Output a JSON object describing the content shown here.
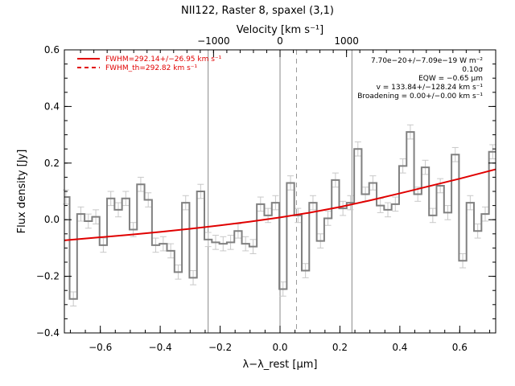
{
  "chart_data": {
    "type": "line",
    "title": "NII122, Raster 8, spaxel (3,1)",
    "xlabel": "λ−λ_rest [μm]",
    "ylabel": "Flux density [Jy]",
    "top_xlabel": "Velocity [km s⁻¹]",
    "xlim": [
      -0.72,
      0.72
    ],
    "ylim": [
      -0.4,
      0.6
    ],
    "xticks": [
      -0.6,
      -0.4,
      -0.2,
      0.0,
      0.2,
      0.4,
      0.6
    ],
    "xtick_labels": [
      "−0.6",
      "−0.4",
      "−0.2",
      "0.0",
      "0.2",
      "0.4",
      "0.6"
    ],
    "yticks": [
      -0.4,
      -0.2,
      0.0,
      0.2,
      0.4,
      0.6
    ],
    "ytick_labels": [
      "−0.4",
      "−0.2",
      "0.0",
      "0.2",
      "0.4",
      "0.6"
    ],
    "top_ticks": [
      -1000,
      0,
      1000
    ],
    "top_tick_labels": [
      "−1000",
      "0",
      "1000"
    ],
    "legend": [
      {
        "label": "FWHM=292.14+/−26.95 km s⁻¹",
        "style": "solid",
        "color": "#e00000"
      },
      {
        "label": "FWHM_th=292.82 km s⁻¹",
        "style": "dashed",
        "color": "#e00000"
      }
    ],
    "annotations": [
      "7.70e−20+/−7.09e−19 W m⁻²",
      "0.10σ",
      "EQW = −0.65 μm",
      "v = 133.84+/−128.24 km s⁻¹",
      "Broadening = 0.00+/−0.00 km s⁻¹"
    ],
    "vlines_solid": [
      -0.24,
      0.0,
      0.24
    ],
    "vlines_dashed": [
      0.055
    ],
    "series": [
      {
        "style": "step",
        "color": "#808080",
        "x": [
          -0.715,
          -0.69,
          -0.665,
          -0.64,
          -0.615,
          -0.59,
          -0.565,
          -0.54,
          -0.515,
          -0.49,
          -0.465,
          -0.44,
          -0.415,
          -0.39,
          -0.365,
          -0.34,
          -0.315,
          -0.29,
          -0.265,
          -0.24,
          -0.215,
          -0.19,
          -0.165,
          -0.14,
          -0.115,
          -0.09,
          -0.065,
          -0.04,
          -0.015,
          0.01,
          0.035,
          0.06,
          0.085,
          0.11,
          0.135,
          0.16,
          0.185,
          0.21,
          0.235,
          0.26,
          0.285,
          0.31,
          0.335,
          0.36,
          0.385,
          0.41,
          0.435,
          0.46,
          0.485,
          0.51,
          0.535,
          0.56,
          0.585,
          0.61,
          0.635,
          0.66,
          0.685,
          0.71
        ],
        "y": [
          0.08,
          -0.28,
          0.02,
          -0.005,
          0.01,
          -0.09,
          0.075,
          0.035,
          0.075,
          -0.035,
          0.125,
          0.07,
          -0.09,
          -0.085,
          -0.11,
          -0.185,
          0.06,
          -0.205,
          0.1,
          -0.07,
          -0.08,
          -0.085,
          -0.08,
          -0.04,
          -0.085,
          -0.095,
          0.055,
          0.015,
          0.06,
          -0.245,
          0.13,
          0.015,
          -0.18,
          0.06,
          -0.075,
          0.005,
          0.14,
          0.04,
          0.06,
          0.25,
          0.09,
          0.13,
          0.05,
          0.035,
          0.055,
          0.19,
          0.31,
          0.09,
          0.185,
          0.015,
          0.12,
          0.025,
          0.23,
          -0.145,
          0.06,
          -0.04,
          0.02,
          0.24
        ]
      },
      {
        "style": "line",
        "color": "#e00000",
        "x": [
          -0.72,
          -0.6,
          -0.5,
          -0.4,
          -0.3,
          -0.2,
          -0.1,
          0.0,
          0.1,
          0.2,
          0.3,
          0.4,
          0.5,
          0.6,
          0.72
        ],
        "y": [
          -0.073,
          -0.062,
          -0.053,
          -0.043,
          -0.032,
          -0.02,
          -0.007,
          0.008,
          0.025,
          0.045,
          0.068,
          0.093,
          0.119,
          0.145,
          0.178
        ]
      }
    ],
    "error_bar": 0.025
  }
}
